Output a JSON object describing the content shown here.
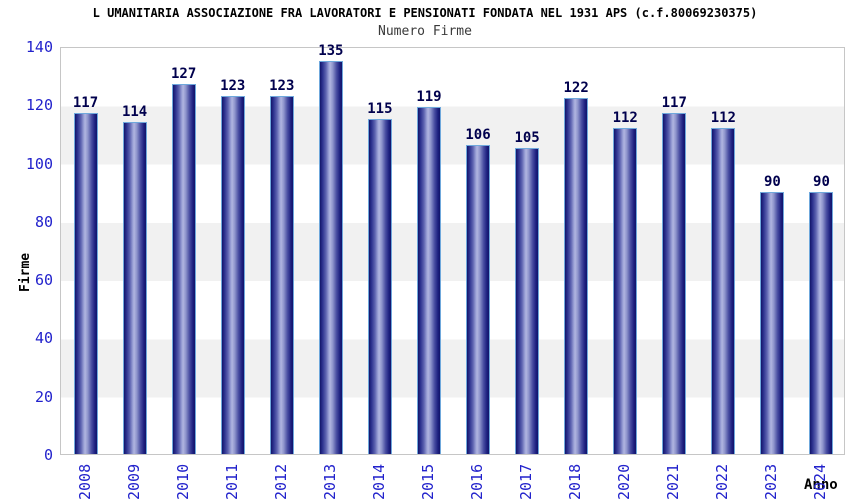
{
  "chart_data": {
    "type": "bar",
    "title": "L UMANITARIA ASSOCIAZIONE FRA LAVORATORI E PENSIONATI FONDATA NEL 1931 APS (c.f.80069230375)",
    "subtitle": "Numero Firme",
    "xlabel": "Anno",
    "ylabel": "Firme",
    "categories": [
      "2008",
      "2009",
      "2010",
      "2011",
      "2012",
      "2013",
      "2014",
      "2015",
      "2016",
      "2017",
      "2018",
      "2020",
      "2021",
      "2022",
      "2023",
      "2024"
    ],
    "values": [
      117,
      114,
      127,
      123,
      123,
      135,
      115,
      119,
      106,
      105,
      122,
      112,
      117,
      112,
      90,
      90
    ],
    "ylim": [
      0,
      140
    ],
    "ytick_step": 20,
    "yticks": [
      0,
      20,
      40,
      60,
      80,
      100,
      120,
      140
    ],
    "grid": "alternating-horizontal-bands",
    "legend": "none",
    "colors": {
      "bar_stroke": "#6fa8dc",
      "bar_dark": "#12146a",
      "bar_highlight": "#b0b5e0",
      "value_label": "#00004d",
      "tick_label": "#2222cc",
      "band_alt": "#f1f1f1",
      "plot_border": "#c6c6c6",
      "title": "#000000",
      "subtitle": "#3a3a3a"
    }
  }
}
